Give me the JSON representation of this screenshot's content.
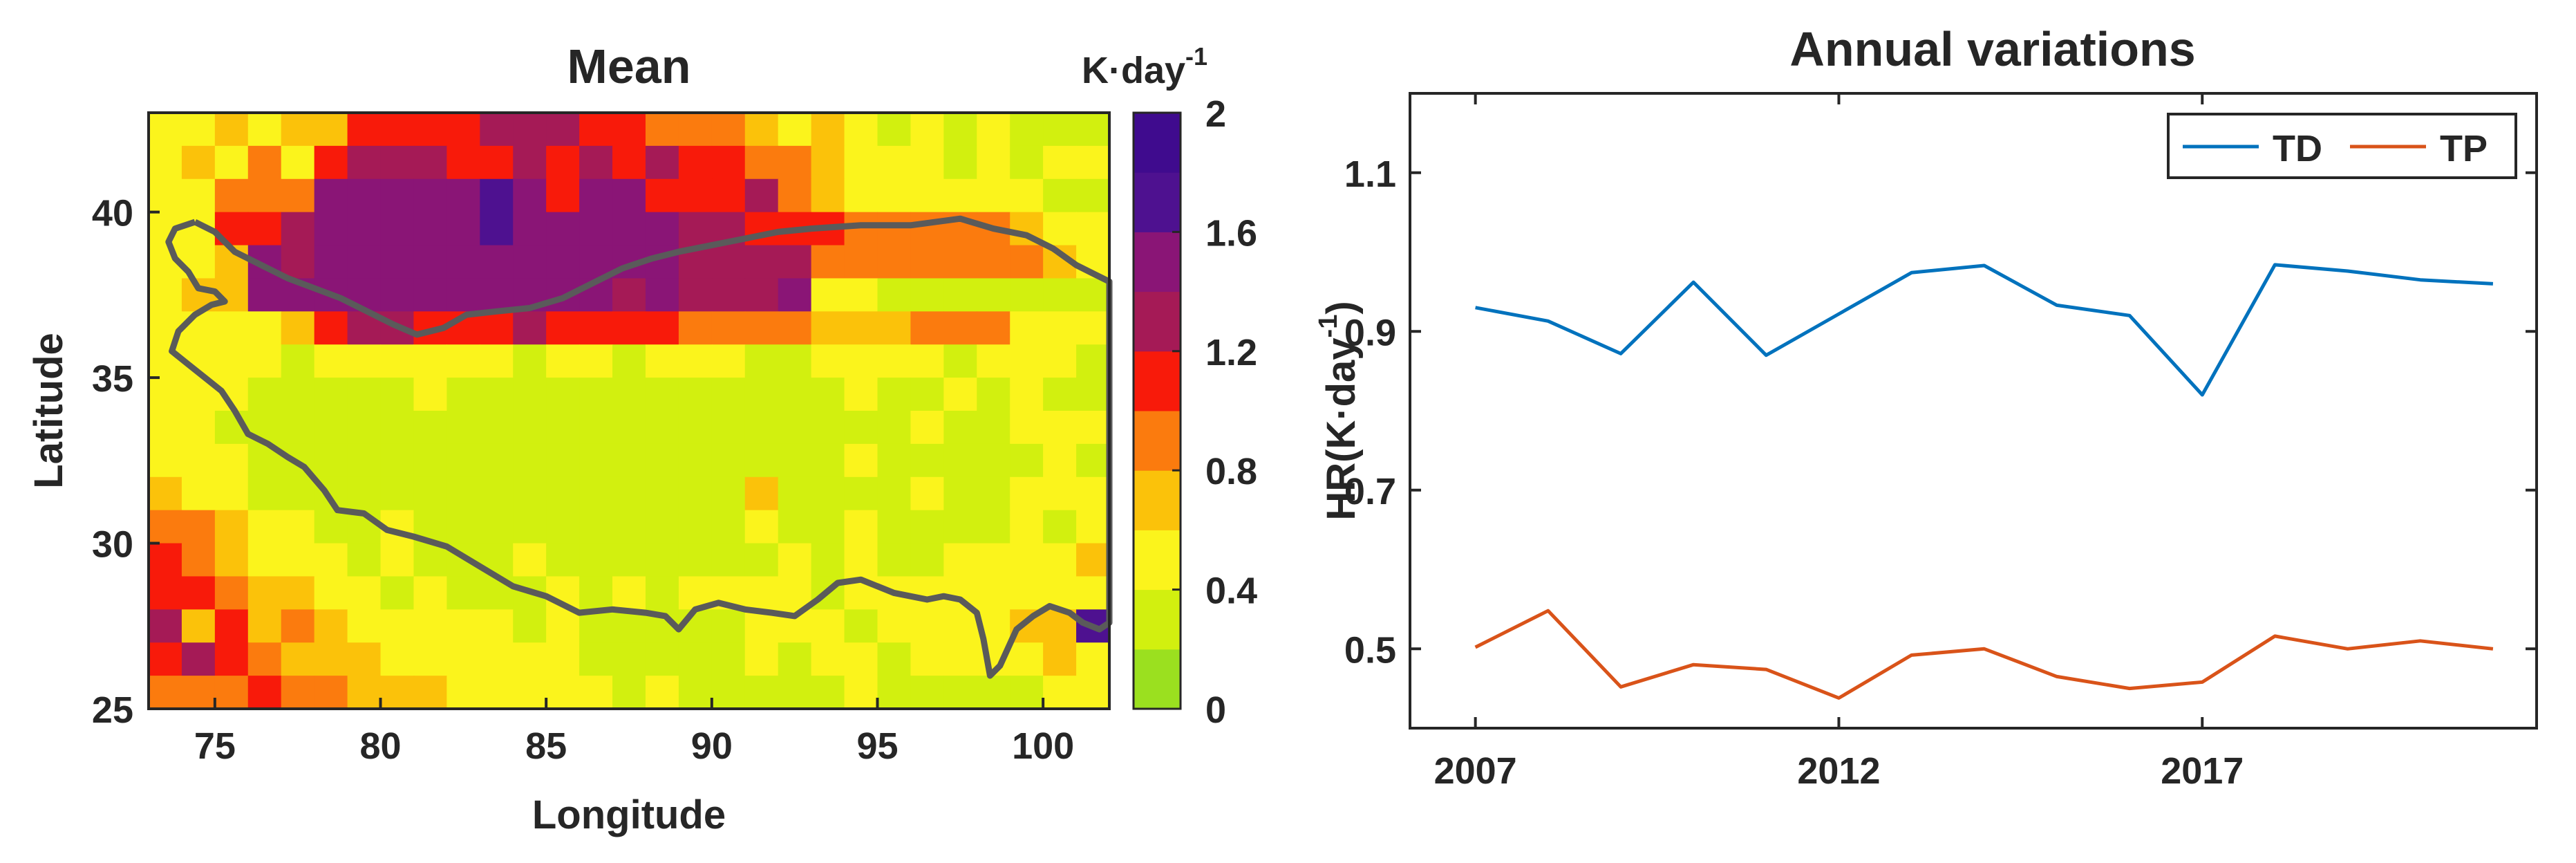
{
  "chart_data": [
    {
      "type": "heatmap",
      "title": "Mean",
      "xlabel": "Longitude",
      "ylabel": "Latitude",
      "xlim": [
        73,
        102
      ],
      "ylim": [
        25,
        43
      ],
      "xticks": [
        75,
        80,
        85,
        90,
        95,
        100
      ],
      "yticks": [
        25,
        30,
        35,
        40
      ],
      "cell_size_deg": 1,
      "colorbar": {
        "unit_label": "K·day",
        "unit_exponent": "-1",
        "range": [
          0,
          2
        ],
        "ticks": [
          0,
          0.4,
          0.8,
          1.2,
          1.6,
          2
        ],
        "colors": [
          "#9be01f",
          "#d2f00f",
          "#fbf41c",
          "#fbc20a",
          "#fb7b0e",
          "#f81a0a",
          "#a51a56",
          "#8a1576",
          "#4e1190",
          "#3f0b8e"
        ]
      },
      "grid_rows_from_north": [
        [
          0.5,
          0.48,
          0.62,
          0.52,
          0.62,
          0.7,
          1.0,
          1.1,
          1.1,
          1.1,
          1.2,
          1.3,
          1.2,
          1.1,
          1.0,
          0.9,
          0.9,
          0.8,
          0.65,
          0.55,
          0.6,
          0.45,
          0.35,
          0.4,
          0.35,
          0.45,
          0.25,
          0.25,
          0.35
        ],
        [
          0.5,
          0.65,
          0.55,
          0.9,
          0.4,
          1.1,
          1.2,
          1.3,
          1.2,
          1.1,
          1.1,
          1.2,
          1.1,
          1.3,
          1.1,
          1.2,
          1.0,
          1.0,
          0.8,
          0.9,
          0.7,
          0.5,
          0.45,
          0.55,
          0.35,
          0.5,
          0.3,
          0.5,
          0.4
        ],
        [
          0.5,
          0.45,
          0.9,
          0.8,
          0.9,
          1.4,
          1.4,
          1.5,
          1.4,
          1.5,
          1.6,
          1.5,
          1.1,
          1.4,
          1.4,
          1.1,
          1.1,
          1.1,
          1.2,
          0.8,
          0.7,
          0.55,
          0.5,
          0.5,
          0.45,
          0.5,
          0.4,
          0.3,
          0.3
        ],
        [
          0.4,
          0.5,
          1.0,
          1.1,
          1.2,
          1.4,
          1.4,
          1.5,
          1.4,
          1.5,
          1.6,
          1.5,
          1.4,
          1.5,
          1.5,
          1.5,
          1.2,
          1.2,
          1.1,
          1.1,
          1.0,
          0.95,
          0.9,
          0.85,
          0.8,
          0.8,
          0.65,
          0.5,
          0.4
        ],
        [
          0.55,
          0.5,
          0.7,
          1.4,
          1.3,
          1.4,
          1.4,
          1.5,
          1.4,
          1.4,
          1.5,
          1.4,
          1.4,
          1.4,
          1.4,
          1.4,
          1.3,
          1.3,
          1.3,
          1.2,
          0.8,
          0.85,
          0.9,
          0.9,
          0.9,
          0.85,
          0.8,
          0.6,
          0.45
        ],
        [
          0.5,
          0.6,
          0.6,
          1.4,
          1.4,
          1.4,
          1.4,
          1.4,
          1.4,
          1.4,
          1.4,
          1.4,
          1.4,
          1.4,
          1.2,
          1.4,
          1.3,
          1.3,
          1.3,
          1.4,
          0.5,
          0.4,
          0.35,
          0.3,
          0.3,
          0.3,
          0.3,
          0.3,
          0.3
        ],
        [
          0.55,
          0.5,
          0.45,
          0.5,
          0.6,
          1.1,
          1.2,
          1.2,
          1.1,
          1.0,
          1.1,
          1.2,
          1.1,
          1.0,
          1.0,
          1.0,
          0.9,
          0.95,
          0.95,
          0.85,
          0.6,
          0.65,
          0.65,
          0.8,
          0.85,
          0.9,
          0.55,
          0.45,
          0.45
        ],
        [
          0.45,
          0.45,
          0.4,
          0.4,
          0.35,
          0.45,
          0.5,
          0.45,
          0.5,
          0.45,
          0.4,
          0.35,
          0.4,
          0.4,
          0.35,
          0.4,
          0.4,
          0.45,
          0.3,
          0.35,
          0.4,
          0.45,
          0.5,
          0.4,
          0.35,
          0.4,
          0.45,
          0.4,
          0.3
        ],
        [
          0.5,
          0.45,
          0.4,
          0.3,
          0.3,
          0.35,
          0.35,
          0.35,
          0.4,
          0.35,
          0.35,
          0.3,
          0.35,
          0.35,
          0.3,
          0.3,
          0.35,
          0.3,
          0.35,
          0.3,
          0.35,
          0.4,
          0.35,
          0.35,
          0.4,
          0.35,
          0.4,
          0.35,
          0.3
        ],
        [
          0.45,
          0.4,
          0.35,
          0.3,
          0.3,
          0.3,
          0.35,
          0.3,
          0.35,
          0.35,
          0.3,
          0.3,
          0.3,
          0.3,
          0.35,
          0.3,
          0.3,
          0.35,
          0.3,
          0.35,
          0.3,
          0.35,
          0.35,
          0.4,
          0.35,
          0.35,
          0.4,
          0.45,
          0.4
        ],
        [
          0.5,
          0.45,
          0.4,
          0.3,
          0.3,
          0.3,
          0.3,
          0.3,
          0.35,
          0.3,
          0.3,
          0.35,
          0.3,
          0.35,
          0.3,
          0.3,
          0.3,
          0.3,
          0.3,
          0.3,
          0.35,
          0.4,
          0.35,
          0.35,
          0.3,
          0.35,
          0.35,
          0.4,
          0.3
        ],
        [
          0.6,
          0.5,
          0.4,
          0.35,
          0.3,
          0.3,
          0.3,
          0.3,
          0.3,
          0.3,
          0.3,
          0.3,
          0.35,
          0.3,
          0.3,
          0.3,
          0.35,
          0.35,
          0.6,
          0.35,
          0.3,
          0.35,
          0.35,
          0.4,
          0.35,
          0.35,
          0.4,
          0.45,
          0.4
        ],
        [
          0.9,
          0.8,
          0.6,
          0.45,
          0.4,
          0.35,
          0.35,
          0.4,
          0.3,
          0.35,
          0.35,
          0.35,
          0.3,
          0.3,
          0.3,
          0.35,
          0.3,
          0.35,
          0.4,
          0.35,
          0.3,
          0.4,
          0.35,
          0.35,
          0.3,
          0.35,
          0.4,
          0.35,
          0.4
        ],
        [
          1.0,
          0.9,
          0.75,
          0.55,
          0.5,
          0.4,
          0.35,
          0.4,
          0.35,
          0.3,
          0.35,
          0.4,
          0.3,
          0.35,
          0.3,
          0.35,
          0.3,
          0.3,
          0.35,
          0.4,
          0.35,
          0.4,
          0.35,
          0.35,
          0.4,
          0.4,
          0.5,
          0.5,
          0.6
        ],
        [
          1.1,
          1.0,
          0.8,
          0.65,
          0.6,
          0.45,
          0.4,
          0.35,
          0.4,
          0.3,
          0.3,
          0.35,
          0.4,
          0.35,
          0.4,
          0.35,
          0.4,
          0.4,
          0.45,
          0.4,
          0.35,
          0.4,
          0.45,
          0.4,
          0.45,
          0.5,
          0.45,
          0.55,
          0.5
        ],
        [
          1.2,
          0.6,
          1.0,
          0.7,
          0.8,
          0.6,
          0.5,
          0.5,
          0.45,
          0.4,
          0.4,
          0.35,
          0.4,
          0.35,
          0.35,
          0.3,
          0.35,
          0.35,
          0.4,
          0.4,
          0.45,
          0.35,
          0.4,
          0.45,
          0.5,
          0.55,
          0.6,
          0.65,
          1.6
        ],
        [
          1.1,
          1.2,
          1.1,
          0.9,
          0.7,
          0.7,
          0.6,
          0.55,
          0.5,
          0.45,
          0.4,
          0.45,
          0.4,
          0.35,
          0.3,
          0.35,
          0.3,
          0.35,
          0.4,
          0.35,
          0.4,
          0.45,
          0.35,
          0.4,
          0.45,
          0.5,
          0.55,
          0.6,
          0.55
        ],
        [
          0.8,
          0.9,
          0.8,
          1.0,
          0.85,
          0.8,
          0.75,
          0.7,
          0.65,
          0.55,
          0.5,
          0.5,
          0.45,
          0.4,
          0.35,
          0.4,
          0.35,
          0.3,
          0.35,
          0.3,
          0.35,
          0.4,
          0.35,
          0.35,
          0.3,
          0.35,
          0.35,
          0.4,
          0.4
        ],
        [
          0.9,
          0.85,
          0.9,
          1.0,
          1.1,
          0.9,
          0.8,
          0.75,
          0.85,
          0.8,
          0.7,
          0.6,
          0.55,
          0.5,
          0.55,
          0.45,
          0.4,
          0.35,
          0.4,
          0.35,
          0.3,
          0.35,
          0.35,
          0.3,
          0.35,
          0.3,
          0.3,
          0.35,
          0.3
        ]
      ],
      "boundary_lonlat": [
        [
          74.4,
          39.7
        ],
        [
          75.0,
          39.4
        ],
        [
          75.6,
          38.8
        ],
        [
          76.4,
          38.4
        ],
        [
          77.2,
          38.0
        ],
        [
          78.0,
          37.7
        ],
        [
          78.8,
          37.4
        ],
        [
          79.6,
          37.0
        ],
        [
          80.4,
          36.6
        ],
        [
          81.1,
          36.3
        ],
        [
          81.9,
          36.5
        ],
        [
          82.6,
          36.9
        ],
        [
          83.5,
          37.0
        ],
        [
          84.5,
          37.1
        ],
        [
          85.5,
          37.4
        ],
        [
          86.5,
          37.9
        ],
        [
          87.3,
          38.3
        ],
        [
          88.2,
          38.6
        ],
        [
          89.0,
          38.8
        ],
        [
          90.0,
          39.0
        ],
        [
          91.0,
          39.2
        ],
        [
          92.0,
          39.4
        ],
        [
          93.0,
          39.5
        ],
        [
          94.5,
          39.6
        ],
        [
          96.0,
          39.6
        ],
        [
          97.5,
          39.8
        ],
        [
          98.5,
          39.5
        ],
        [
          99.5,
          39.3
        ],
        [
          100.3,
          38.9
        ],
        [
          101.0,
          38.4
        ],
        [
          101.6,
          38.1
        ],
        [
          102.0,
          37.9
        ],
        [
          102.0,
          27.6
        ],
        [
          101.7,
          27.4
        ],
        [
          101.2,
          27.6
        ],
        [
          100.8,
          27.9
        ],
        [
          100.2,
          28.1
        ],
        [
          99.7,
          27.8
        ],
        [
          99.2,
          27.4
        ],
        [
          98.7,
          26.3
        ],
        [
          98.4,
          26.0
        ],
        [
          98.2,
          27.1
        ],
        [
          98.0,
          27.9
        ],
        [
          97.5,
          28.3
        ],
        [
          97.0,
          28.4
        ],
        [
          96.5,
          28.3
        ],
        [
          95.5,
          28.5
        ],
        [
          94.5,
          28.9
        ],
        [
          93.8,
          28.8
        ],
        [
          93.2,
          28.3
        ],
        [
          92.5,
          27.8
        ],
        [
          91.8,
          27.9
        ],
        [
          91.0,
          28.0
        ],
        [
          90.2,
          28.2
        ],
        [
          89.5,
          28.0
        ],
        [
          89.0,
          27.4
        ],
        [
          88.6,
          27.8
        ],
        [
          88.0,
          27.9
        ],
        [
          87.0,
          28.0
        ],
        [
          86.0,
          27.9
        ],
        [
          85.0,
          28.4
        ],
        [
          84.0,
          28.7
        ],
        [
          83.0,
          29.3
        ],
        [
          82.0,
          29.9
        ],
        [
          81.0,
          30.2
        ],
        [
          80.2,
          30.4
        ],
        [
          79.5,
          30.9
        ],
        [
          78.7,
          31.0
        ],
        [
          78.3,
          31.6
        ],
        [
          77.7,
          32.3
        ],
        [
          77.2,
          32.6
        ],
        [
          76.6,
          33.0
        ],
        [
          76.0,
          33.3
        ],
        [
          75.6,
          34.0
        ],
        [
          75.2,
          34.6
        ],
        [
          74.7,
          35.0
        ],
        [
          74.2,
          35.4
        ],
        [
          73.7,
          35.8
        ],
        [
          73.9,
          36.4
        ],
        [
          74.4,
          36.9
        ],
        [
          74.9,
          37.2
        ],
        [
          75.3,
          37.3
        ],
        [
          75.0,
          37.6
        ],
        [
          74.5,
          37.7
        ],
        [
          74.2,
          38.2
        ],
        [
          73.8,
          38.6
        ],
        [
          73.6,
          39.1
        ],
        [
          73.8,
          39.5
        ],
        [
          74.4,
          39.7
        ]
      ]
    },
    {
      "type": "line",
      "title": "Annual variations",
      "xlabel": "",
      "ylabel": "HR(K·day",
      "ylabel_exponent": "-1",
      "ylabel_suffix": ")",
      "xlim": [
        2006.1,
        2021.6
      ],
      "ylim": [
        0.4,
        1.2
      ],
      "xticks": [
        2007,
        2012,
        2017
      ],
      "yticks": [
        0.5,
        0.7,
        0.9,
        1.1
      ],
      "yticklabels": [
        "0.5",
        "0.7",
        "0.9",
        "1.1"
      ],
      "x": [
        2007,
        2008,
        2009,
        2010,
        2011,
        2012,
        2013,
        2014,
        2015,
        2016,
        2017,
        2018,
        2019,
        2020,
        2021
      ],
      "series": [
        {
          "name": "TD",
          "color": "#0072bd",
          "values": [
            0.93,
            0.913,
            0.872,
            0.962,
            0.87,
            0.922,
            0.974,
            0.983,
            0.933,
            0.92,
            0.82,
            0.984,
            0.976,
            0.965,
            0.96
          ]
        },
        {
          "name": "TP",
          "color": "#d95319",
          "values": [
            0.502,
            0.548,
            0.452,
            0.48,
            0.474,
            0.438,
            0.492,
            0.5,
            0.465,
            0.45,
            0.458,
            0.516,
            0.5,
            0.51,
            0.5
          ]
        }
      ],
      "legend": "top-right"
    }
  ]
}
